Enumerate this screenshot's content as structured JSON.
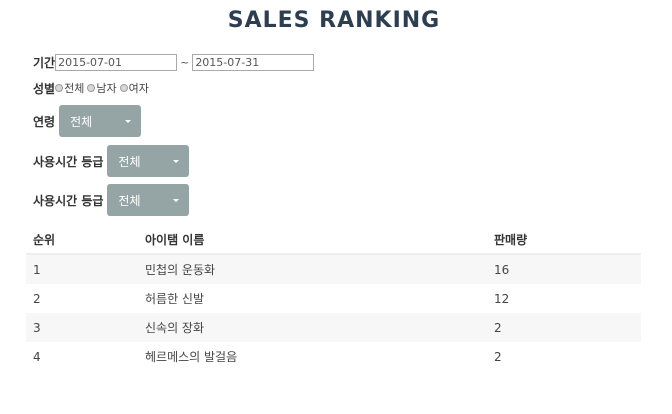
{
  "title": "SALES RANKING",
  "filters": {
    "period": {
      "label": "기간",
      "start": "2015-07-01",
      "separator": "~",
      "end": "2015-07-31"
    },
    "gender": {
      "label": "성별",
      "options": [
        "전체",
        "남자",
        "여자"
      ]
    },
    "age": {
      "label": "연령",
      "selected": "전체"
    },
    "usage_grade_1": {
      "label": "사용시간 등급",
      "selected": "전체"
    },
    "usage_grade_2": {
      "label": "사용시간 등급",
      "selected": "전체"
    }
  },
  "table": {
    "headers": [
      "순위",
      "아이탬 이름",
      "판매량"
    ],
    "rows": [
      [
        "1",
        "민첩의 운동화",
        "16"
      ],
      [
        "2",
        "허름한 신발",
        "12"
      ],
      [
        "3",
        "신속의 장화",
        "2"
      ],
      [
        "4",
        "헤르메스의 발걸음",
        "2"
      ]
    ]
  },
  "colors": {
    "title": "#2c3e50",
    "dropdown_bg": "#95a5a6",
    "stripe": "#f7f7f7"
  }
}
